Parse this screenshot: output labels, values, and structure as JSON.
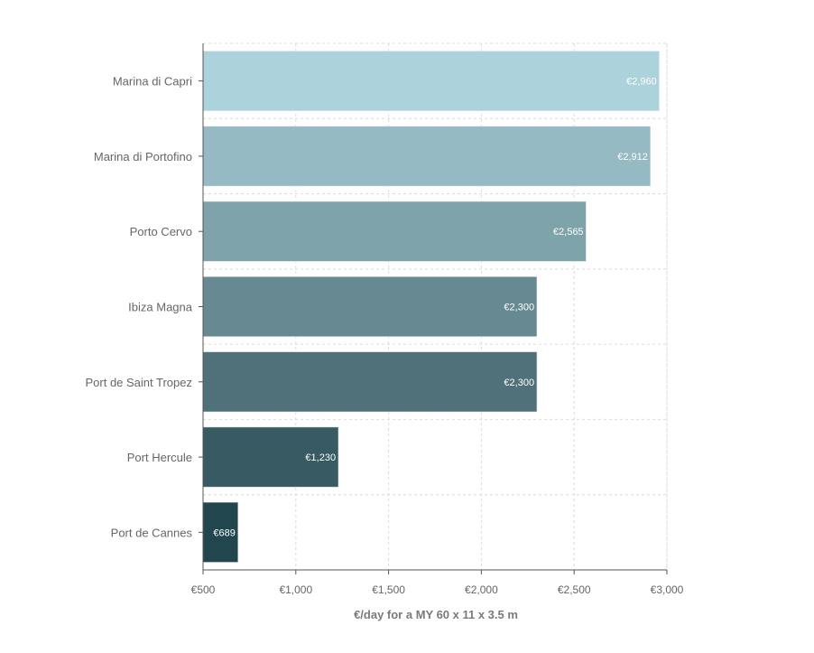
{
  "chart_data": {
    "type": "bar",
    "orientation": "horizontal",
    "categories": [
      "Marina di Capri",
      "Marina di Portofino",
      "Porto Cervo",
      "Ibiza Magna",
      "Port de Saint Tropez",
      "Port Hercule",
      "Port de Cannes"
    ],
    "values": [
      2960,
      2912,
      2565,
      2300,
      2300,
      1230,
      689
    ],
    "value_labels": [
      "€2,960",
      "€2,912",
      "€2,565",
      "€2,300",
      "€2,300",
      "€1,230",
      "€689"
    ],
    "colors": [
      "#acd2db",
      "#95bac3",
      "#7fa3aa",
      "#678a92",
      "#50717a",
      "#385a62",
      "#22464e"
    ],
    "xlabel": "€/day for a MY 60 x 11 x 3.5 m",
    "xlim": [
      500,
      3000
    ],
    "xticks": [
      500,
      1000,
      1500,
      2000,
      2500,
      3000
    ],
    "xtick_labels": [
      "€500",
      "€1,000",
      "€1,500",
      "€2,000",
      "€2,500",
      "€3,000"
    ],
    "grid": true
  }
}
